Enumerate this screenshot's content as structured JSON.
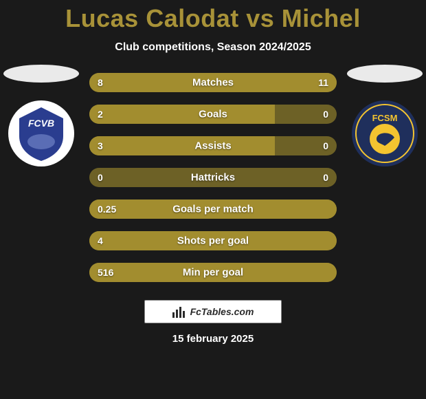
{
  "header": {
    "player_a": "Lucas Calodat",
    "vs": "vs",
    "player_b": "Michel"
  },
  "subtitle": "Club competitions, Season 2024/2025",
  "badges": {
    "left": {
      "label": "FCVB",
      "bg_color": "#ffffff",
      "inner_color": "#2a3d8f",
      "text_color": "#ffffff"
    },
    "right": {
      "label": "FCSM",
      "bg_color": "#1f2f5c",
      "inner_color": "#f4c430",
      "text_color": "#1f2f5c"
    }
  },
  "colors": {
    "bar_a": "#a28d2f",
    "bar_b": "#a28d2f",
    "bar_neutral": "#6d6126",
    "bar_neutral_light": "#8a7b30"
  },
  "stats": [
    {
      "label": "Matches",
      "a": "8",
      "b": "11",
      "pct_a": 42,
      "pct_b": 58,
      "show_both_bars": true
    },
    {
      "label": "Goals",
      "a": "2",
      "b": "0",
      "pct_a": 75,
      "pct_b": 0,
      "show_both_bars": true
    },
    {
      "label": "Assists",
      "a": "3",
      "b": "0",
      "pct_a": 75,
      "pct_b": 0,
      "show_both_bars": true
    },
    {
      "label": "Hattricks",
      "a": "0",
      "b": "0",
      "pct_a": 0,
      "pct_b": 0,
      "show_both_bars": false
    },
    {
      "label": "Goals per match",
      "a": "0.25",
      "b": "",
      "pct_a": 100,
      "pct_b": 0,
      "show_both_bars": false,
      "single_side": "a"
    },
    {
      "label": "Shots per goal",
      "a": "4",
      "b": "",
      "pct_a": 100,
      "pct_b": 0,
      "show_both_bars": false,
      "single_side": "a"
    },
    {
      "label": "Min per goal",
      "a": "516",
      "b": "",
      "pct_a": 100,
      "pct_b": 0,
      "show_both_bars": false,
      "single_side": "a"
    }
  ],
  "footer": {
    "brand": "FcTables.com",
    "date": "15 february 2025"
  }
}
